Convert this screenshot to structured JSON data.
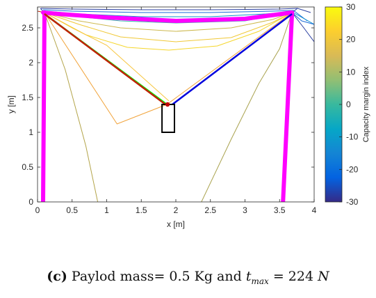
{
  "chart_data": {
    "type": "line",
    "title": "",
    "xlabel": "x [m]",
    "ylabel": "y [m]",
    "xlim": [
      0,
      4
    ],
    "ylim": [
      0,
      2.8
    ],
    "xticks": [
      0,
      0.5,
      1,
      1.5,
      2,
      2.5,
      3,
      3.5,
      4
    ],
    "xtick_labels": [
      "0",
      "0.5",
      "1",
      "1.5",
      "2",
      "2.5",
      "3",
      "3.5",
      "4"
    ],
    "yticks": [
      0,
      0.5,
      1,
      1.5,
      2,
      2.5
    ],
    "ytick_labels": [
      "0",
      "0.5",
      "1",
      "1.5",
      "2",
      "2.5"
    ],
    "grid": false,
    "colorbar": {
      "label": "Capacity margin index",
      "range": [
        -30,
        30
      ],
      "ticks": [
        30,
        20,
        10,
        0,
        -10,
        -20,
        -30
      ],
      "tick_labels": [
        "30",
        "20",
        "10",
        "0",
        "-10",
        "-20",
        "-30"
      ],
      "colormap": [
        "#352a87",
        "#0363e1",
        "#1485d4",
        "#06a7c6",
        "#38b99e",
        "#92bf73",
        "#d9ba56",
        "#fcce2e",
        "#f9fb0e"
      ]
    },
    "structure": {
      "left_column": [
        [
          0.08,
          0
        ],
        [
          0.1,
          2.72
        ]
      ],
      "right_column": [
        [
          3.55,
          0
        ],
        [
          3.68,
          2.72
        ]
      ],
      "top_cable": [
        [
          0.08,
          2.72
        ],
        [
          0.3,
          2.7
        ],
        [
          1,
          2.65
        ],
        [
          2,
          2.6
        ],
        [
          3,
          2.63
        ],
        [
          3.68,
          2.72
        ]
      ],
      "color": "#ff00ff"
    },
    "robot_cables": [
      {
        "from": [
          0.1,
          2.7
        ],
        "to": [
          1.87,
          1.4
        ],
        "color": "#00ff00"
      },
      {
        "from": [
          0.1,
          2.7
        ],
        "to": [
          1.85,
          1.4
        ],
        "color": "#c02000"
      },
      {
        "from": [
          3.68,
          2.7
        ],
        "to": [
          1.95,
          1.4
        ],
        "color": "#0000dd"
      }
    ],
    "end_effector": {
      "rect": [
        1.8,
        1.0,
        1.98,
        1.4
      ],
      "point": [
        1.88,
        1.4
      ],
      "point_color": "#c00000",
      "rect_color": "#000000"
    },
    "sagging_curves": [
      {
        "color": "#2a3ea0",
        "points": [
          [
            0.05,
            2.78
          ],
          [
            0.5,
            2.77
          ],
          [
            1.5,
            2.76
          ],
          [
            2.5,
            2.76
          ],
          [
            3.5,
            2.77
          ],
          [
            3.76,
            2.78
          ],
          [
            3.95,
            2.72
          ]
        ]
      },
      {
        "color": "#1a6ad8",
        "points": [
          [
            0.08,
            2.76
          ],
          [
            0.5,
            2.74
          ],
          [
            1.5,
            2.72
          ],
          [
            2.5,
            2.72
          ],
          [
            3.4,
            2.74
          ],
          [
            3.7,
            2.75
          ],
          [
            3.9,
            2.6
          ]
        ]
      },
      {
        "color": "#1192cf",
        "points": [
          [
            0.1,
            2.74
          ],
          [
            0.6,
            2.7
          ],
          [
            1.5,
            2.66
          ],
          [
            2.5,
            2.66
          ],
          [
            3.3,
            2.7
          ],
          [
            3.68,
            2.73
          ],
          [
            4.0,
            2.55
          ]
        ]
      },
      {
        "color": "#33b8a6",
        "points": [
          [
            0.1,
            2.72
          ],
          [
            0.5,
            2.67
          ],
          [
            1.2,
            2.6
          ],
          [
            2.0,
            2.57
          ],
          [
            3.0,
            2.6
          ],
          [
            3.68,
            2.72
          ]
        ]
      },
      {
        "color": "#cdb84e",
        "points": [
          [
            0.1,
            2.72
          ],
          [
            0.6,
            2.6
          ],
          [
            1.2,
            2.5
          ],
          [
            2.0,
            2.45
          ],
          [
            2.8,
            2.5
          ],
          [
            3.4,
            2.62
          ],
          [
            3.68,
            2.72
          ]
        ]
      },
      {
        "color": "#f0c836",
        "points": [
          [
            0.1,
            2.72
          ],
          [
            0.6,
            2.55
          ],
          [
            1.2,
            2.37
          ],
          [
            2.0,
            2.3
          ],
          [
            2.8,
            2.36
          ],
          [
            3.4,
            2.58
          ],
          [
            3.68,
            2.72
          ]
        ]
      },
      {
        "color": "#f5d62a",
        "points": [
          [
            0.1,
            2.72
          ],
          [
            0.7,
            2.4
          ],
          [
            1.3,
            2.22
          ],
          [
            1.9,
            2.18
          ],
          [
            2.6,
            2.24
          ],
          [
            3.2,
            2.45
          ],
          [
            3.68,
            2.72
          ]
        ]
      },
      {
        "color": "#f1a33a",
        "points": [
          [
            0.1,
            2.72
          ],
          [
            1.15,
            1.12
          ],
          [
            1.87,
            1.4
          ],
          [
            3.68,
            2.72
          ]
        ]
      },
      {
        "color": "#f7c53c",
        "points": [
          [
            0.1,
            2.72
          ],
          [
            0.5,
            2.5
          ],
          [
            1.0,
            2.25
          ],
          [
            1.9,
            1.45
          ]
        ]
      },
      {
        "color": "#b3a449",
        "points": [
          [
            0.1,
            2.72
          ],
          [
            0.4,
            1.9
          ],
          [
            0.7,
            0.8
          ],
          [
            0.87,
            0
          ]
        ]
      },
      {
        "color": "#a9a24e",
        "points": [
          [
            2.37,
            0
          ],
          [
            2.8,
            0.9
          ],
          [
            3.2,
            1.7
          ],
          [
            3.5,
            2.2
          ],
          [
            3.68,
            2.72
          ]
        ]
      },
      {
        "color": "#2a3ea0",
        "points": [
          [
            3.68,
            2.72
          ],
          [
            3.85,
            2.5
          ],
          [
            4.0,
            2.3
          ]
        ]
      },
      {
        "color": "#1a6ad8",
        "points": [
          [
            3.68,
            2.72
          ],
          [
            3.82,
            2.6
          ],
          [
            4.0,
            2.55
          ]
        ]
      },
      {
        "color": "#2a3ea0",
        "points": [
          [
            3.68,
            2.72
          ],
          [
            3.76,
            2.78
          ]
        ]
      },
      {
        "color": "#2a3ea0",
        "points": [
          [
            0.04,
            2.78
          ],
          [
            0.1,
            2.72
          ]
        ]
      },
      {
        "color": "#c02000",
        "points": [
          [
            0.0,
            2.74
          ],
          [
            0.1,
            2.72
          ]
        ]
      }
    ]
  },
  "caption": {
    "label": "(c)",
    "text_before": " Paylod mass= 0.5 Kg and ",
    "t_symbol": "t",
    "t_sub": "max",
    "text_after": " = 224 ",
    "unit": "N"
  }
}
